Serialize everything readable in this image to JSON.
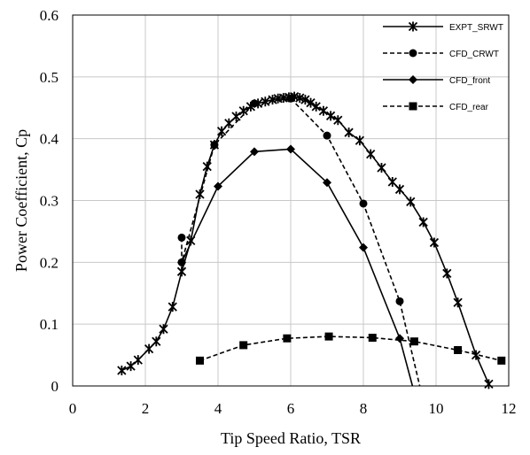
{
  "chart_data": {
    "type": "line",
    "title": "",
    "xlabel": "Tip Speed Ratio, TSR",
    "ylabel": "Power Coefficient, Cp",
    "xlim": [
      0,
      12
    ],
    "ylim": [
      0,
      0.6
    ],
    "xticks": [
      0,
      2,
      4,
      6,
      8,
      10,
      12
    ],
    "xtick_labels": [
      "0",
      "2",
      "4",
      "6",
      "8",
      "10",
      "12"
    ],
    "yticks": [
      0,
      0.1,
      0.2,
      0.3,
      0.4,
      0.5,
      0.6
    ],
    "ytick_labels": [
      "0",
      "0.1",
      "0.2",
      "0.3",
      "0.4",
      "0.5",
      "0.6"
    ],
    "grid": true,
    "legend_position": "top-right",
    "series": [
      {
        "name": "EXPT_SRWT",
        "line": "solid",
        "marker": "star",
        "color": "#000000",
        "points": [
          [
            1.35,
            0.025
          ],
          [
            1.6,
            0.032
          ],
          [
            1.8,
            0.042
          ],
          [
            2.1,
            0.06
          ],
          [
            2.3,
            0.072
          ],
          [
            2.5,
            0.092
          ],
          [
            2.75,
            0.128
          ],
          [
            3.0,
            0.185
          ],
          [
            3.25,
            0.235
          ],
          [
            3.5,
            0.31
          ],
          [
            3.7,
            0.355
          ],
          [
            3.9,
            0.39
          ],
          [
            4.1,
            0.412
          ],
          [
            4.3,
            0.425
          ],
          [
            4.5,
            0.436
          ],
          [
            4.7,
            0.445
          ],
          [
            4.9,
            0.452
          ],
          [
            5.1,
            0.457
          ],
          [
            5.3,
            0.46
          ],
          [
            5.5,
            0.463
          ],
          [
            5.65,
            0.465
          ],
          [
            5.8,
            0.466
          ],
          [
            5.95,
            0.467
          ],
          [
            6.1,
            0.468
          ],
          [
            6.25,
            0.466
          ],
          [
            6.4,
            0.463
          ],
          [
            6.55,
            0.458
          ],
          [
            6.7,
            0.452
          ],
          [
            6.9,
            0.445
          ],
          [
            7.1,
            0.437
          ],
          [
            7.3,
            0.43
          ],
          [
            7.6,
            0.41
          ],
          [
            7.9,
            0.397
          ],
          [
            8.2,
            0.375
          ],
          [
            8.5,
            0.353
          ],
          [
            8.8,
            0.33
          ],
          [
            9.0,
            0.318
          ],
          [
            9.3,
            0.298
          ],
          [
            9.65,
            0.265
          ],
          [
            9.95,
            0.232
          ],
          [
            10.3,
            0.182
          ],
          [
            10.6,
            0.135
          ],
          [
            11.1,
            0.05
          ],
          [
            11.45,
            0.003
          ]
        ]
      },
      {
        "name": "CFD_CRWT",
        "line": "dashed",
        "marker": "circle",
        "color": "#000000",
        "points": [
          [
            3.0,
            0.24
          ],
          [
            3.0,
            0.2
          ],
          [
            3.9,
            0.39
          ],
          [
            5.0,
            0.457
          ],
          [
            6.0,
            0.465
          ],
          [
            7.0,
            0.405
          ],
          [
            8.0,
            0.295
          ],
          [
            9.0,
            0.137
          ],
          [
            9.55,
            0.0
          ]
        ]
      },
      {
        "name": "CFD_front",
        "line": "solid",
        "marker": "diamond",
        "color": "#000000",
        "points": [
          [
            3.0,
            0.2
          ],
          [
            4.0,
            0.323
          ],
          [
            5.0,
            0.379
          ],
          [
            6.0,
            0.383
          ],
          [
            7.0,
            0.329
          ],
          [
            8.0,
            0.224
          ],
          [
            9.0,
            0.077
          ],
          [
            9.35,
            0.0
          ]
        ]
      },
      {
        "name": "CFD_rear",
        "line": "dashed",
        "marker": "square",
        "color": "#000000",
        "points": [
          [
            3.5,
            0.041
          ],
          [
            4.7,
            0.066
          ],
          [
            5.9,
            0.077
          ],
          [
            7.05,
            0.08
          ],
          [
            8.25,
            0.078
          ],
          [
            9.4,
            0.072
          ],
          [
            10.6,
            0.058
          ],
          [
            11.8,
            0.041
          ]
        ]
      }
    ]
  }
}
